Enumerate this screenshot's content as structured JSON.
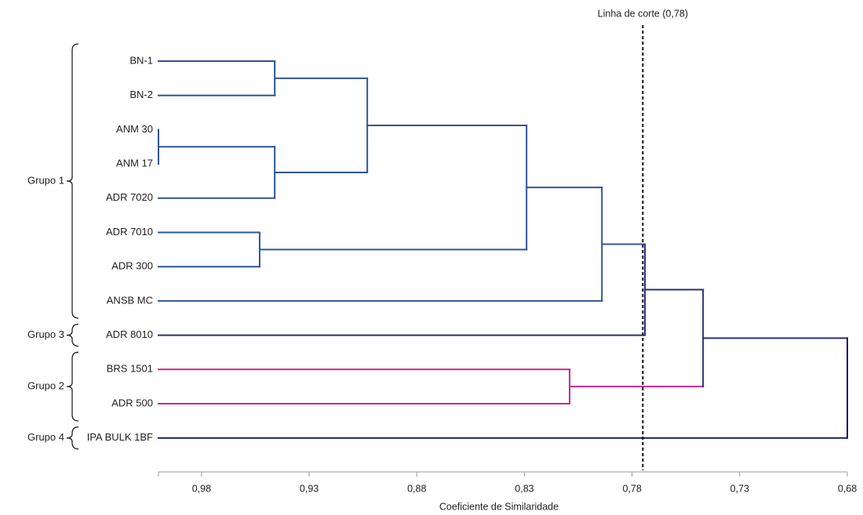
{
  "chart_data": {
    "type": "dendrogram",
    "xlabel": "Coeficiente de  Similaridade",
    "xlim": [
      1.0,
      0.68
    ],
    "x_reversed": true,
    "x_ticks": [
      0.98,
      0.93,
      0.88,
      0.83,
      0.78,
      0.73,
      0.68
    ],
    "x_tick_labels": [
      "0,98",
      "0,93",
      "0,88",
      "0,83",
      "0,78",
      "0,73",
      "0,68"
    ],
    "cut_line": {
      "value": 0.775,
      "label": "Linha de corte (0,78)"
    },
    "leaves": [
      "BN-1",
      "BN-2",
      "ANM 30",
      "ANM 17",
      "ADR 7020",
      "ADR 7010",
      "ADR 300",
      "ANSB MC",
      "ADR 8010",
      "BRS 1501",
      "ADR 500",
      "IPA BULK 1BF"
    ],
    "leaf_colors": [
      "#2f5597",
      "#2f5597",
      "#2f5597",
      "#2f5597",
      "#2f5597",
      "#2f5597",
      "#2f5597",
      "#2f5597",
      "#2b2f78",
      "#c8288c",
      "#c8288c",
      "#1a1a6e"
    ],
    "merges": [
      {
        "left": "ANM 30",
        "right": "ANM 17",
        "similarity": 1.0,
        "color": "#2f5597"
      },
      {
        "left": "BN-1",
        "right": "BN-2",
        "similarity": 0.946,
        "color": "#2f5597"
      },
      {
        "left": "ANM 30",
        "right": "ADR 7020",
        "similarity": 0.946,
        "color": "#2f5597"
      },
      {
        "left": "ADR 7010",
        "right": "ADR 300",
        "similarity": 0.953,
        "color": "#2f5597"
      },
      {
        "left": "BN-1",
        "right": "ANM 30",
        "similarity": 0.903,
        "color": "#2f5597"
      },
      {
        "left": "BN-1",
        "right": "ADR 7010",
        "similarity": 0.829,
        "color": "#2f5597"
      },
      {
        "left": "BN-1",
        "right": "ANSB MC",
        "similarity": 0.794,
        "color": "#2f5597"
      },
      {
        "left": "BRS 1501",
        "right": "ADR 500",
        "similarity": 0.809,
        "color": "#c8288c"
      },
      {
        "left": "BN-1",
        "right": "ADR 8010",
        "similarity": 0.774,
        "color": "#2b2f78"
      },
      {
        "left": "BN-1",
        "right": "BRS 1501",
        "similarity": 0.747,
        "color": "#2b2f78"
      },
      {
        "left": "BN-1",
        "right": "IPA BULK 1BF",
        "similarity": 0.68,
        "color": "#1a1a6e"
      }
    ],
    "groups": [
      {
        "name": "Grupo 1",
        "first_leaf": "BN-1",
        "last_leaf": "ANSB MC"
      },
      {
        "name": "Grupo 3",
        "first_leaf": "ADR 8010",
        "last_leaf": "ADR 8010"
      },
      {
        "name": "Grupo 2",
        "first_leaf": "BRS 1501",
        "last_leaf": "ADR 500"
      },
      {
        "name": "Grupo 4",
        "first_leaf": "IPA BULK 1BF",
        "last_leaf": "IPA BULK 1BF"
      }
    ]
  }
}
